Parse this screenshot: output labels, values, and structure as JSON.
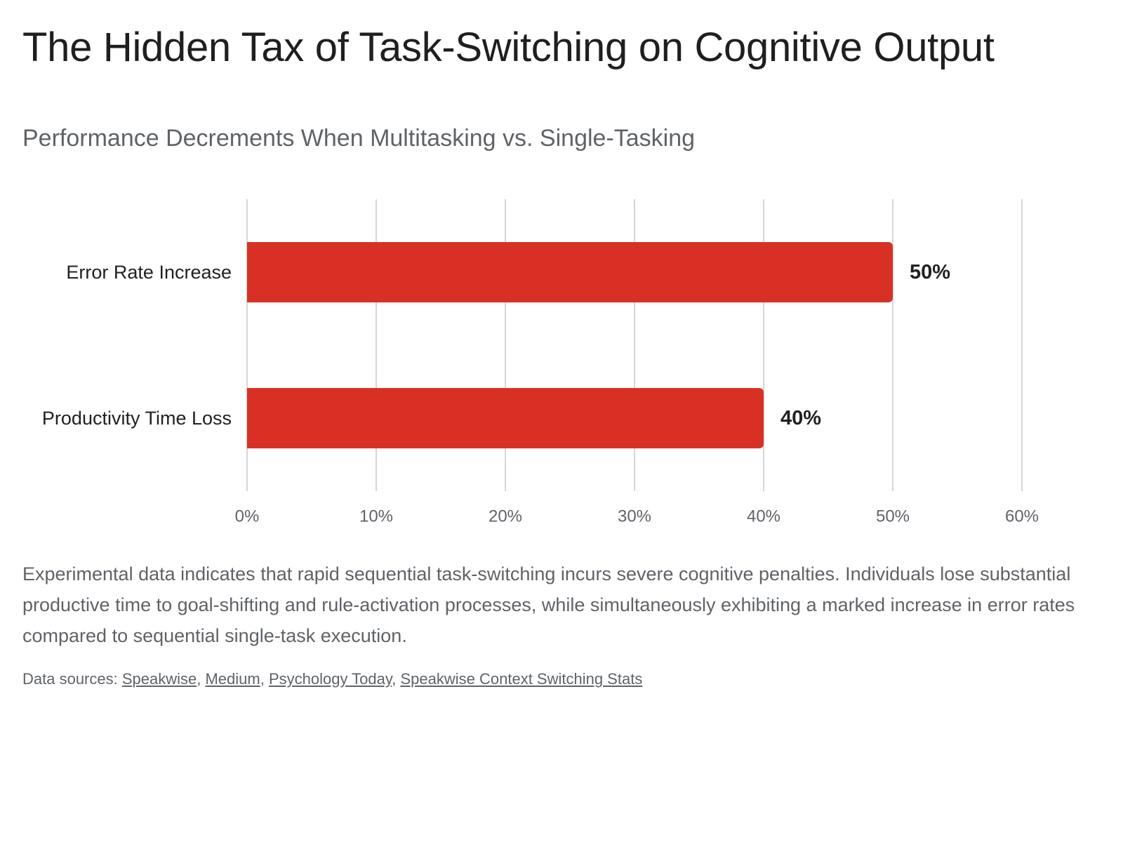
{
  "page": {
    "title": "The Hidden Tax of Task-Switching on Cognitive Output",
    "description": "Experimental data indicates that rapid sequential task-switching incurs severe cognitive penalties. Individuals lose substantial productive time to goal-shifting and rule-activation processes, while simultaneously exhibiting a marked increase in error rates compared to sequential single-task execution.",
    "sources_label": "Data sources: ",
    "sources": [
      {
        "label": "Speakwise"
      },
      {
        "label": "Medium"
      },
      {
        "label": "Psychology Today"
      },
      {
        "label": "Speakwise Context Switching Stats"
      }
    ]
  },
  "chart_data": {
    "type": "bar",
    "orientation": "horizontal",
    "title": "",
    "subtitle": "Performance Decrements When Multitasking vs. Single-Tasking",
    "categories": [
      "Error Rate Increase",
      "Productivity Time Loss"
    ],
    "values": [
      50,
      40
    ],
    "value_labels": [
      "50%",
      "40%"
    ],
    "xlim": [
      0,
      60
    ],
    "xticks": [
      0,
      10,
      20,
      30,
      40,
      50,
      60
    ],
    "xtick_labels": [
      "0%",
      "10%",
      "20%",
      "30%",
      "40%",
      "50%",
      "60%"
    ],
    "grid": true,
    "legend": "none",
    "colors": {
      "bar": "#d93025",
      "grid": "#c8c8c8",
      "tick_text": "#5f6368",
      "category_text": "#202124",
      "value_text": "#202124"
    }
  }
}
